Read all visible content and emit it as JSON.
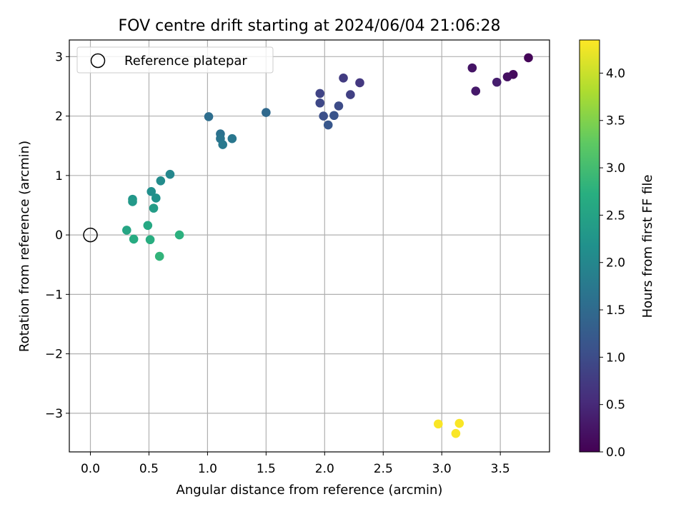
{
  "chart_data": {
    "type": "scatter",
    "title": "FOV centre drift starting at 2024/06/04 21:06:28",
    "xlabel": "Angular distance from reference (arcmin)",
    "ylabel": "Rotation from reference (arcmin)",
    "xlim": [
      -0.18,
      3.92
    ],
    "ylim": [
      -3.65,
      3.28
    ],
    "grid": true,
    "x_ticks": [
      0.0,
      0.5,
      1.0,
      1.5,
      2.0,
      2.5,
      3.0,
      3.5
    ],
    "x_tick_labels": [
      "0.0",
      "0.5",
      "1.0",
      "1.5",
      "2.0",
      "2.5",
      "3.0",
      "3.5"
    ],
    "y_ticks": [
      3,
      2,
      1,
      0,
      -1,
      -2,
      -3
    ],
    "y_tick_labels": [
      "3",
      "2",
      "1",
      "0",
      "−1",
      "−2",
      "−3"
    ],
    "legend": {
      "placement": "top-left",
      "entries": [
        {
          "label": "Reference platepar",
          "marker": "hollow-circle"
        }
      ]
    },
    "reference_point": {
      "x": 0.0,
      "y": 0.0
    },
    "colorbar": {
      "label": "Hours from first FF file",
      "colormap": "viridis",
      "range": [
        0.0,
        4.35
      ],
      "ticks": [
        0.0,
        0.5,
        1.0,
        1.5,
        2.0,
        2.5,
        3.0,
        3.5,
        4.0
      ],
      "tick_labels": [
        "0.0",
        "0.5",
        "1.0",
        "1.5",
        "2.0",
        "2.5",
        "3.0",
        "3.5",
        "4.0"
      ]
    },
    "points": [
      {
        "x": 3.74,
        "y": 2.98,
        "c": 0.05
      },
      {
        "x": 3.61,
        "y": 2.7,
        "c": 0.12
      },
      {
        "x": 3.56,
        "y": 2.66,
        "c": 0.18
      },
      {
        "x": 3.26,
        "y": 2.81,
        "c": 0.24
      },
      {
        "x": 3.29,
        "y": 2.42,
        "c": 0.3
      },
      {
        "x": 3.47,
        "y": 2.57,
        "c": 0.36
      },
      {
        "x": 2.3,
        "y": 2.56,
        "c": 0.7
      },
      {
        "x": 2.16,
        "y": 2.64,
        "c": 0.76
      },
      {
        "x": 2.22,
        "y": 2.36,
        "c": 0.82
      },
      {
        "x": 1.96,
        "y": 2.38,
        "c": 0.88
      },
      {
        "x": 1.96,
        "y": 2.22,
        "c": 0.94
      },
      {
        "x": 2.12,
        "y": 2.17,
        "c": 1.0
      },
      {
        "x": 1.99,
        "y": 2.0,
        "c": 1.06
      },
      {
        "x": 2.08,
        "y": 2.01,
        "c": 1.12
      },
      {
        "x": 2.03,
        "y": 1.85,
        "c": 1.18
      },
      {
        "x": 1.5,
        "y": 2.06,
        "c": 1.48
      },
      {
        "x": 1.01,
        "y": 1.99,
        "c": 1.56
      },
      {
        "x": 1.11,
        "y": 1.7,
        "c": 1.62
      },
      {
        "x": 1.11,
        "y": 1.62,
        "c": 1.68
      },
      {
        "x": 1.21,
        "y": 1.62,
        "c": 1.72
      },
      {
        "x": 1.13,
        "y": 1.52,
        "c": 1.76
      },
      {
        "x": 0.68,
        "y": 1.02,
        "c": 2.0
      },
      {
        "x": 0.6,
        "y": 0.91,
        "c": 2.08
      },
      {
        "x": 0.52,
        "y": 0.73,
        "c": 2.14
      },
      {
        "x": 0.56,
        "y": 0.62,
        "c": 2.2
      },
      {
        "x": 0.36,
        "y": 0.6,
        "c": 2.26
      },
      {
        "x": 0.36,
        "y": 0.56,
        "c": 2.32
      },
      {
        "x": 0.54,
        "y": 0.45,
        "c": 2.38
      },
      {
        "x": 0.31,
        "y": 0.08,
        "c": 2.55
      },
      {
        "x": 0.49,
        "y": 0.16,
        "c": 2.6
      },
      {
        "x": 0.37,
        "y": -0.07,
        "c": 2.66
      },
      {
        "x": 0.51,
        "y": -0.08,
        "c": 2.7
      },
      {
        "x": 0.76,
        "y": 0.0,
        "c": 2.76
      },
      {
        "x": 0.59,
        "y": -0.36,
        "c": 2.82
      },
      {
        "x": 2.97,
        "y": -3.18,
        "c": 4.32
      },
      {
        "x": 3.15,
        "y": -3.17,
        "c": 4.32
      },
      {
        "x": 3.12,
        "y": -3.34,
        "c": 4.32
      }
    ]
  }
}
